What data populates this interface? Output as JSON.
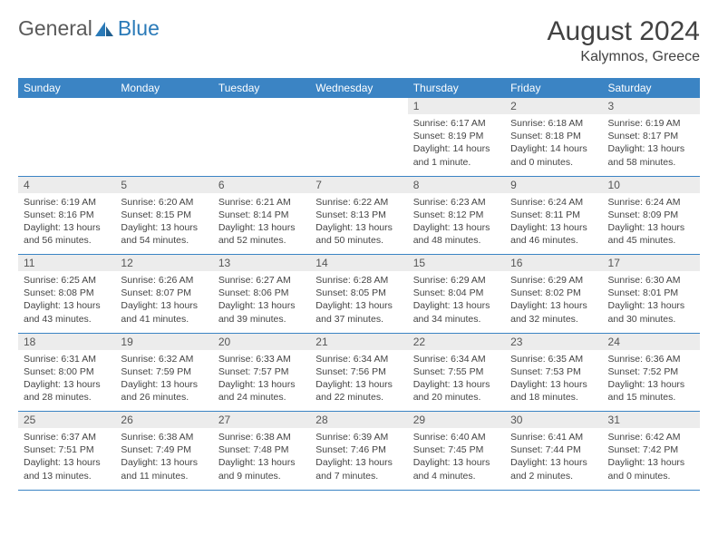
{
  "colors": {
    "header_bg": "#3b84c4",
    "header_text": "#ffffff",
    "daynum_bg": "#ececec",
    "text": "#444444",
    "rule": "#3b84c4",
    "logo_gray": "#5a5a5a",
    "logo_blue": "#2a7ab8"
  },
  "logo": {
    "part1": "General",
    "part2": "Blue"
  },
  "title": "August 2024",
  "location": "Kalymnos, Greece",
  "weekdays": [
    "Sunday",
    "Monday",
    "Tuesday",
    "Wednesday",
    "Thursday",
    "Friday",
    "Saturday"
  ],
  "weeks": [
    [
      null,
      null,
      null,
      null,
      {
        "n": "1",
        "sr": "Sunrise: 6:17 AM",
        "ss": "Sunset: 8:19 PM",
        "dl": "Daylight: 14 hours and 1 minute."
      },
      {
        "n": "2",
        "sr": "Sunrise: 6:18 AM",
        "ss": "Sunset: 8:18 PM",
        "dl": "Daylight: 14 hours and 0 minutes."
      },
      {
        "n": "3",
        "sr": "Sunrise: 6:19 AM",
        "ss": "Sunset: 8:17 PM",
        "dl": "Daylight: 13 hours and 58 minutes."
      }
    ],
    [
      {
        "n": "4",
        "sr": "Sunrise: 6:19 AM",
        "ss": "Sunset: 8:16 PM",
        "dl": "Daylight: 13 hours and 56 minutes."
      },
      {
        "n": "5",
        "sr": "Sunrise: 6:20 AM",
        "ss": "Sunset: 8:15 PM",
        "dl": "Daylight: 13 hours and 54 minutes."
      },
      {
        "n": "6",
        "sr": "Sunrise: 6:21 AM",
        "ss": "Sunset: 8:14 PM",
        "dl": "Daylight: 13 hours and 52 minutes."
      },
      {
        "n": "7",
        "sr": "Sunrise: 6:22 AM",
        "ss": "Sunset: 8:13 PM",
        "dl": "Daylight: 13 hours and 50 minutes."
      },
      {
        "n": "8",
        "sr": "Sunrise: 6:23 AM",
        "ss": "Sunset: 8:12 PM",
        "dl": "Daylight: 13 hours and 48 minutes."
      },
      {
        "n": "9",
        "sr": "Sunrise: 6:24 AM",
        "ss": "Sunset: 8:11 PM",
        "dl": "Daylight: 13 hours and 46 minutes."
      },
      {
        "n": "10",
        "sr": "Sunrise: 6:24 AM",
        "ss": "Sunset: 8:09 PM",
        "dl": "Daylight: 13 hours and 45 minutes."
      }
    ],
    [
      {
        "n": "11",
        "sr": "Sunrise: 6:25 AM",
        "ss": "Sunset: 8:08 PM",
        "dl": "Daylight: 13 hours and 43 minutes."
      },
      {
        "n": "12",
        "sr": "Sunrise: 6:26 AM",
        "ss": "Sunset: 8:07 PM",
        "dl": "Daylight: 13 hours and 41 minutes."
      },
      {
        "n": "13",
        "sr": "Sunrise: 6:27 AM",
        "ss": "Sunset: 8:06 PM",
        "dl": "Daylight: 13 hours and 39 minutes."
      },
      {
        "n": "14",
        "sr": "Sunrise: 6:28 AM",
        "ss": "Sunset: 8:05 PM",
        "dl": "Daylight: 13 hours and 37 minutes."
      },
      {
        "n": "15",
        "sr": "Sunrise: 6:29 AM",
        "ss": "Sunset: 8:04 PM",
        "dl": "Daylight: 13 hours and 34 minutes."
      },
      {
        "n": "16",
        "sr": "Sunrise: 6:29 AM",
        "ss": "Sunset: 8:02 PM",
        "dl": "Daylight: 13 hours and 32 minutes."
      },
      {
        "n": "17",
        "sr": "Sunrise: 6:30 AM",
        "ss": "Sunset: 8:01 PM",
        "dl": "Daylight: 13 hours and 30 minutes."
      }
    ],
    [
      {
        "n": "18",
        "sr": "Sunrise: 6:31 AM",
        "ss": "Sunset: 8:00 PM",
        "dl": "Daylight: 13 hours and 28 minutes."
      },
      {
        "n": "19",
        "sr": "Sunrise: 6:32 AM",
        "ss": "Sunset: 7:59 PM",
        "dl": "Daylight: 13 hours and 26 minutes."
      },
      {
        "n": "20",
        "sr": "Sunrise: 6:33 AM",
        "ss": "Sunset: 7:57 PM",
        "dl": "Daylight: 13 hours and 24 minutes."
      },
      {
        "n": "21",
        "sr": "Sunrise: 6:34 AM",
        "ss": "Sunset: 7:56 PM",
        "dl": "Daylight: 13 hours and 22 minutes."
      },
      {
        "n": "22",
        "sr": "Sunrise: 6:34 AM",
        "ss": "Sunset: 7:55 PM",
        "dl": "Daylight: 13 hours and 20 minutes."
      },
      {
        "n": "23",
        "sr": "Sunrise: 6:35 AM",
        "ss": "Sunset: 7:53 PM",
        "dl": "Daylight: 13 hours and 18 minutes."
      },
      {
        "n": "24",
        "sr": "Sunrise: 6:36 AM",
        "ss": "Sunset: 7:52 PM",
        "dl": "Daylight: 13 hours and 15 minutes."
      }
    ],
    [
      {
        "n": "25",
        "sr": "Sunrise: 6:37 AM",
        "ss": "Sunset: 7:51 PM",
        "dl": "Daylight: 13 hours and 13 minutes."
      },
      {
        "n": "26",
        "sr": "Sunrise: 6:38 AM",
        "ss": "Sunset: 7:49 PM",
        "dl": "Daylight: 13 hours and 11 minutes."
      },
      {
        "n": "27",
        "sr": "Sunrise: 6:38 AM",
        "ss": "Sunset: 7:48 PM",
        "dl": "Daylight: 13 hours and 9 minutes."
      },
      {
        "n": "28",
        "sr": "Sunrise: 6:39 AM",
        "ss": "Sunset: 7:46 PM",
        "dl": "Daylight: 13 hours and 7 minutes."
      },
      {
        "n": "29",
        "sr": "Sunrise: 6:40 AM",
        "ss": "Sunset: 7:45 PM",
        "dl": "Daylight: 13 hours and 4 minutes."
      },
      {
        "n": "30",
        "sr": "Sunrise: 6:41 AM",
        "ss": "Sunset: 7:44 PM",
        "dl": "Daylight: 13 hours and 2 minutes."
      },
      {
        "n": "31",
        "sr": "Sunrise: 6:42 AM",
        "ss": "Sunset: 7:42 PM",
        "dl": "Daylight: 13 hours and 0 minutes."
      }
    ]
  ]
}
